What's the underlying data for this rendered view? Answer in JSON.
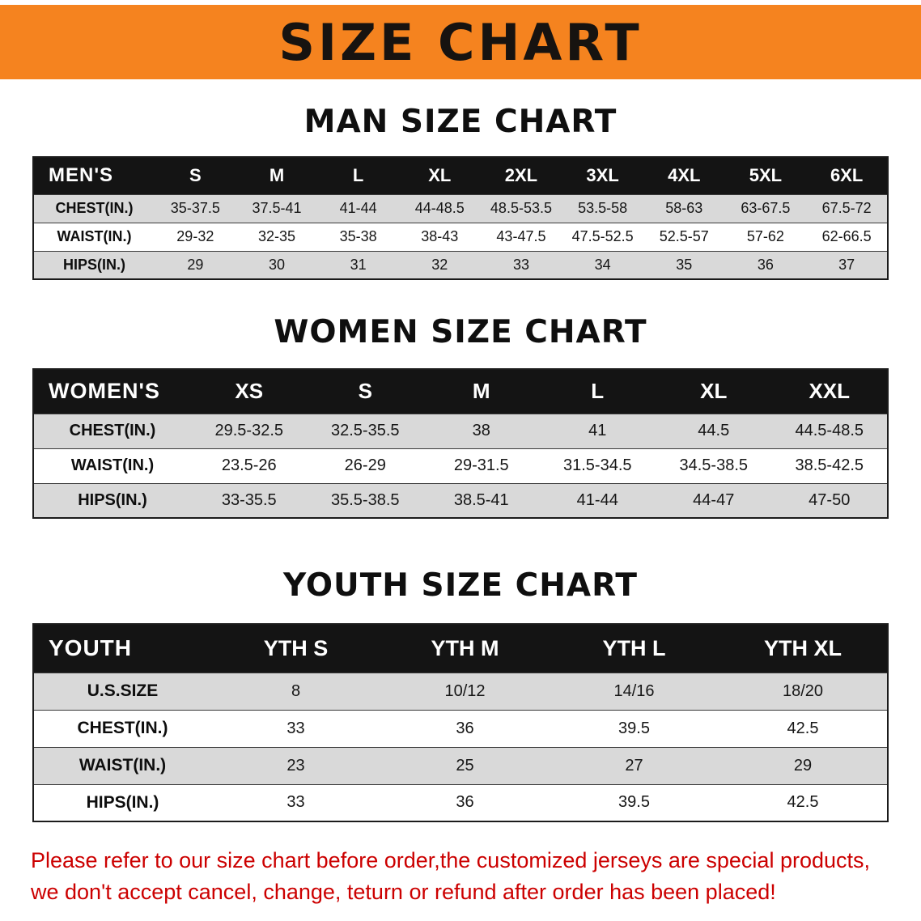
{
  "banner": {
    "title": "SIZE CHART",
    "bg_color": "#f5831f",
    "text_color": "#171310"
  },
  "chart_data": [
    {
      "type": "table",
      "title": "MAN SIZE CHART",
      "label": "MEN'S",
      "columns": [
        "S",
        "M",
        "L",
        "XL",
        "2XL",
        "3XL",
        "4XL",
        "5XL",
        "6XL"
      ],
      "rows": [
        {
          "label": "CHEST(IN.)",
          "values": [
            "35-37.5",
            "37.5-41",
            "41-44",
            "44-48.5",
            "48.5-53.5",
            "53.5-58",
            "58-63",
            "63-67.5",
            "67.5-72"
          ]
        },
        {
          "label": "WAIST(IN.)",
          "values": [
            "29-32",
            "32-35",
            "35-38",
            "38-43",
            "43-47.5",
            "47.5-52.5",
            "52.5-57",
            "57-62",
            "62-66.5"
          ]
        },
        {
          "label": "HIPS(IN.)",
          "values": [
            "29",
            "30",
            "31",
            "32",
            "33",
            "34",
            "35",
            "36",
            "37"
          ]
        }
      ]
    },
    {
      "type": "table",
      "title": "WOMEN SIZE CHART",
      "label": "WOMEN'S",
      "columns": [
        "XS",
        "S",
        "M",
        "L",
        "XL",
        "XXL"
      ],
      "rows": [
        {
          "label": "CHEST(IN.)",
          "values": [
            "29.5-32.5",
            "32.5-35.5",
            "38",
            "41",
            "44.5",
            "44.5-48.5"
          ]
        },
        {
          "label": "WAIST(IN.)",
          "values": [
            "23.5-26",
            "26-29",
            "29-31.5",
            "31.5-34.5",
            "34.5-38.5",
            "38.5-42.5"
          ]
        },
        {
          "label": "HIPS(IN.)",
          "values": [
            "33-35.5",
            "35.5-38.5",
            "38.5-41",
            "41-44",
            "44-47",
            "47-50"
          ]
        }
      ]
    },
    {
      "type": "table",
      "title": "YOUTH SIZE CHART",
      "label": "YOUTH",
      "columns": [
        "YTH S",
        "YTH M",
        "YTH L",
        "YTH XL"
      ],
      "rows": [
        {
          "label": "U.S.SIZE",
          "values": [
            "8",
            "10/12",
            "14/16",
            "18/20"
          ]
        },
        {
          "label": "CHEST(IN.)",
          "values": [
            "33",
            "36",
            "39.5",
            "42.5"
          ]
        },
        {
          "label": "WAIST(IN.)",
          "values": [
            "23",
            "25",
            "27",
            "29"
          ]
        },
        {
          "label": "HIPS(IN.)",
          "values": [
            "33",
            "36",
            "39.5",
            "42.5"
          ]
        }
      ]
    }
  ],
  "disclaimer": {
    "line1": "Please refer to our size chart before order,the customized jerseys are special products,",
    "line2": "we don't accept cancel, change, teturn or refund after order has been placed!",
    "color": "#cc0000"
  }
}
